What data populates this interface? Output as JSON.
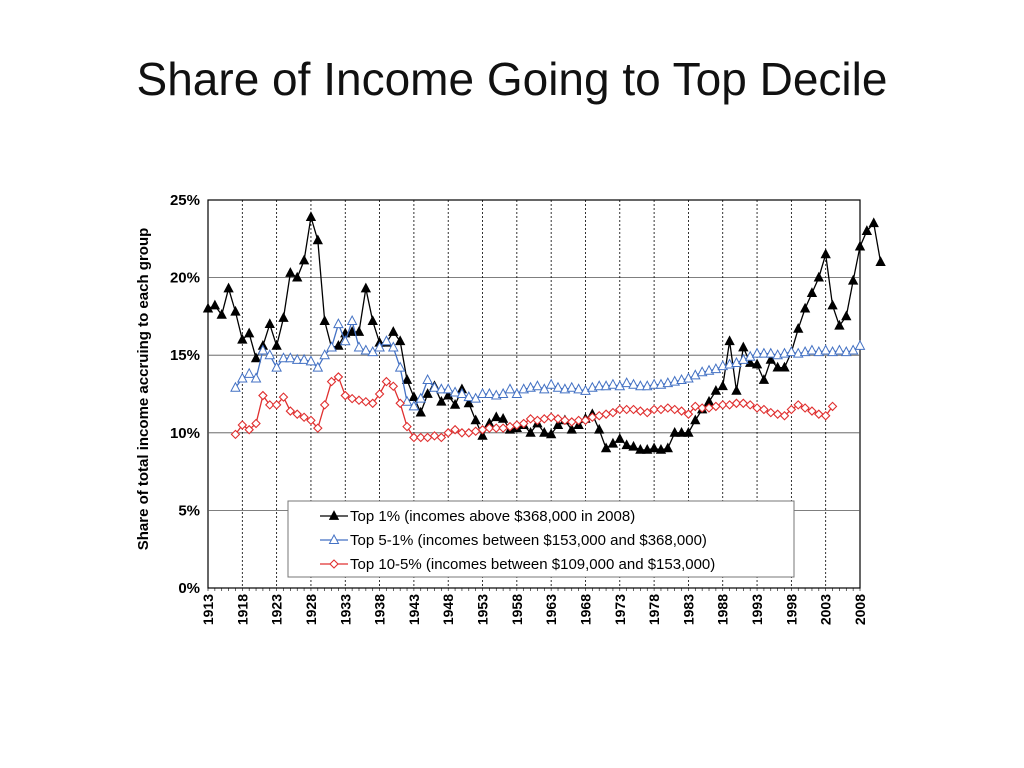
{
  "slide": {
    "title": "Share of Income Going to Top Decile"
  },
  "chart_data": {
    "type": "line",
    "title": "",
    "xlabel": "",
    "ylabel": "Share of total income accruing to each group",
    "xlim": [
      1913,
      2008
    ],
    "ylim": [
      0,
      25
    ],
    "y_ticks": [
      "0%",
      "5%",
      "10%",
      "15%",
      "20%",
      "25%"
    ],
    "x_ticks": [
      "1913",
      "1918",
      "1923",
      "1928",
      "1933",
      "1938",
      "1943",
      "1948",
      "1953",
      "1958",
      "1963",
      "1968",
      "1973",
      "1978",
      "1983",
      "1988",
      "1993",
      "1998",
      "2003",
      "2008"
    ],
    "grid": "vertical at 5-year ticks and horizontal at 5% ticks",
    "legend_position": "bottom-center",
    "series": [
      {
        "name": "Top 1% (incomes above $368,000 in 2008)",
        "color": "#000000",
        "marker": "filled-triangle",
        "start_year": 1913,
        "values": [
          18.0,
          18.2,
          17.6,
          19.3,
          17.8,
          16.0,
          16.4,
          14.8,
          15.6,
          17.0,
          15.6,
          17.4,
          20.3,
          20.0,
          21.1,
          23.9,
          22.4,
          17.2,
          15.5,
          15.6,
          16.4,
          16.5,
          16.5,
          19.3,
          17.2,
          15.8,
          15.8,
          16.5,
          15.9,
          13.4,
          12.3,
          11.3,
          12.5,
          13.0,
          12.0,
          12.4,
          11.8,
          12.8,
          11.9,
          10.8,
          9.8,
          10.6,
          11.0,
          10.9,
          10.2,
          10.3,
          10.5,
          10.0,
          10.6,
          10.0,
          9.9,
          10.5,
          10.8,
          10.2,
          10.5,
          10.9,
          11.2,
          10.2,
          9.0,
          9.3,
          9.6,
          9.2,
          9.1,
          8.9,
          8.9,
          9.0,
          8.9,
          9.0,
          10.0,
          10.0,
          10.0,
          10.8,
          11.5,
          12.0,
          12.7,
          13.0,
          15.9,
          12.7,
          15.5,
          14.5,
          14.4,
          13.4,
          14.7,
          14.2,
          14.2,
          15.2,
          16.7,
          18.0,
          19.0,
          20.0,
          21.5,
          18.2,
          16.9,
          17.5,
          19.8,
          22.0,
          23.0,
          23.5,
          21.0
        ]
      },
      {
        "name": "Top 5-1% (incomes between $153,000 and $368,000)",
        "color": "#4472C4",
        "marker": "open-triangle",
        "start_year": 1917,
        "values": [
          12.9,
          13.5,
          13.8,
          13.5,
          15.3,
          15.0,
          14.2,
          14.8,
          14.8,
          14.7,
          14.7,
          14.6,
          14.2,
          15.0,
          15.5,
          17.0,
          15.9,
          17.2,
          15.5,
          15.3,
          15.2,
          15.5,
          15.9,
          15.5,
          14.2,
          12.0,
          11.7,
          12.2,
          13.4,
          12.9,
          12.8,
          12.8,
          12.6,
          12.5,
          12.3,
          12.2,
          12.5,
          12.5,
          12.4,
          12.5,
          12.8,
          12.5,
          12.8,
          12.9,
          13.0,
          12.8,
          13.1,
          12.9,
          12.8,
          12.9,
          12.8,
          12.7,
          12.9,
          13.0,
          13.0,
          13.1,
          13.0,
          13.2,
          13.1,
          13.0,
          13.0,
          13.1,
          13.1,
          13.2,
          13.3,
          13.4,
          13.5,
          13.7,
          13.9,
          14.0,
          14.1,
          14.3,
          14.4,
          14.5,
          14.7,
          14.9,
          15.1,
          15.1,
          15.1,
          15.0,
          15.1,
          15.2,
          15.1,
          15.2,
          15.3,
          15.2,
          15.3,
          15.2,
          15.3,
          15.2,
          15.3,
          15.6
        ]
      },
      {
        "name": "Top 10-5% (incomes between $109,000 and $153,000)",
        "color": "#E03030",
        "marker": "open-diamond",
        "start_year": 1917,
        "values": [
          9.9,
          10.5,
          10.2,
          10.6,
          12.4,
          11.8,
          11.8,
          12.3,
          11.4,
          11.2,
          11.0,
          10.8,
          10.3,
          11.8,
          13.3,
          13.6,
          12.4,
          12.2,
          12.1,
          12.0,
          11.9,
          12.5,
          13.3,
          13.0,
          11.9,
          10.4,
          9.7,
          9.7,
          9.7,
          9.8,
          9.7,
          10.0,
          10.2,
          10.0,
          10.0,
          10.1,
          10.2,
          10.3,
          10.3,
          10.3,
          10.4,
          10.5,
          10.6,
          10.9,
          10.8,
          10.9,
          11.0,
          10.9,
          10.8,
          10.7,
          10.8,
          10.8,
          11.0,
          11.1,
          11.2,
          11.3,
          11.5,
          11.5,
          11.5,
          11.4,
          11.3,
          11.5,
          11.5,
          11.6,
          11.5,
          11.4,
          11.2,
          11.7,
          11.6,
          11.6,
          11.7,
          11.8,
          11.8,
          11.9,
          11.9,
          11.8,
          11.6,
          11.5,
          11.3,
          11.2,
          11.1,
          11.5,
          11.8,
          11.6,
          11.4,
          11.2,
          11.1,
          11.7
        ]
      }
    ]
  }
}
